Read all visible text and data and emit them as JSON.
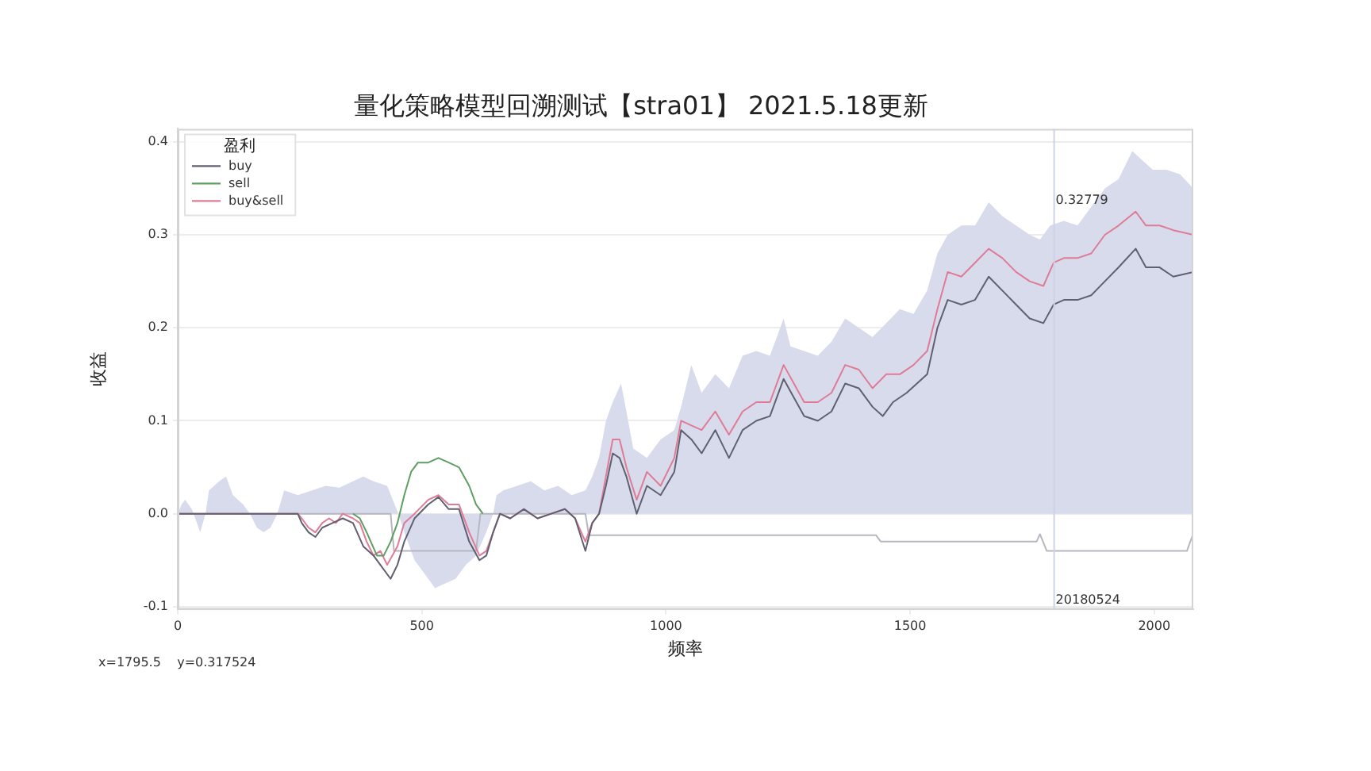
{
  "chart_data": {
    "type": "line",
    "title": "量化策略模型回溯测试【stra01】 2021.5.18更新",
    "xlabel": "频率",
    "ylabel": "收益",
    "legend_title": "盈利",
    "xlim": [
      0,
      2080
    ],
    "ylim": [
      -0.103,
      0.414
    ],
    "xticks": [
      0,
      500,
      1000,
      1500,
      2000
    ],
    "yticks": [
      -0.1,
      {
        "value": 0,
        "label": "0.0"
      },
      0.1,
      0.2,
      0.3,
      0.4
    ],
    "grid": "y",
    "legend": "top left",
    "series": [
      {
        "type": "area",
        "color": "#d8dbec",
        "x": [
          0,
          8,
          15,
          29,
          46,
          57,
          64,
          85,
          99,
          113,
          134,
          148,
          162,
          176,
          190,
          204,
          218,
          246,
          275,
          303,
          331,
          359,
          380,
          401,
          429,
          452,
          464,
          485,
          506,
          527,
          548,
          569,
          590,
          611,
          632,
          646,
          653,
          667,
          695,
          723,
          751,
          779,
          807,
          835,
          849,
          863,
          877,
          891,
          908,
          919,
          933,
          961,
          989,
          1017,
          1031,
          1052,
          1073,
          1101,
          1129,
          1157,
          1185,
          1213,
          1241,
          1255,
          1283,
          1311,
          1339,
          1367,
          1395,
          1423,
          1451,
          1479,
          1507,
          1535,
          1556,
          1577,
          1605,
          1633,
          1661,
          1689,
          1717,
          1745,
          1766,
          1787,
          1815,
          1843,
          1871,
          1899,
          1927,
          1955,
          1976,
          1997,
          2025,
          2053,
          2080
        ],
        "values": [
          0,
          0.01,
          0.015,
          0.005,
          -0.02,
          0,
          0.025,
          0.035,
          0.04,
          0.02,
          0.01,
          0,
          -0.015,
          -0.02,
          -0.015,
          0,
          0.025,
          0.02,
          0.025,
          0.03,
          0.028,
          0.035,
          0.04,
          0.035,
          0.03,
          0,
          -0.02,
          -0.05,
          -0.065,
          -0.08,
          -0.075,
          -0.07,
          -0.055,
          -0.045,
          -0.02,
          0,
          0.02,
          0.025,
          0.03,
          0.035,
          0.025,
          0.03,
          0.02,
          0.025,
          0.04,
          0.06,
          0.1,
          0.12,
          0.14,
          0.11,
          0.07,
          0.06,
          0.08,
          0.09,
          0.115,
          0.16,
          0.13,
          0.15,
          0.135,
          0.17,
          0.175,
          0.17,
          0.21,
          0.18,
          0.175,
          0.17,
          0.185,
          0.21,
          0.2,
          0.19,
          0.205,
          0.22,
          0.215,
          0.24,
          0.28,
          0.3,
          0.31,
          0.31,
          0.335,
          0.32,
          0.31,
          0.3,
          0.295,
          0.31,
          0.315,
          0.31,
          0.33,
          0.35,
          0.36,
          0.39,
          0.38,
          0.37,
          0.37,
          0.365,
          0.35
        ]
      },
      {
        "type": "line",
        "name": "buy",
        "color": "#5f6070",
        "x": [
          0,
          246,
          254,
          268,
          282,
          296,
          317,
          338,
          359,
          380,
          401,
          415,
          436,
          450,
          464,
          485,
          513,
          534,
          555,
          576,
          597,
          618,
          632,
          646,
          660,
          681,
          709,
          737,
          765,
          793,
          814,
          835,
          849,
          863,
          877,
          891,
          905,
          919,
          940,
          961,
          989,
          1017,
          1031,
          1052,
          1073,
          1101,
          1129,
          1157,
          1185,
          1213,
          1241,
          1262,
          1283,
          1311,
          1339,
          1367,
          1395,
          1423,
          1444,
          1465,
          1493,
          1535,
          1556,
          1577,
          1605,
          1633,
          1661,
          1689,
          1717,
          1745,
          1773,
          1794,
          1815,
          1843,
          1871,
          1899,
          1927,
          1962,
          1983,
          2011,
          2039,
          2080
        ],
        "values": [
          0,
          0,
          -0.01,
          -0.02,
          -0.025,
          -0.015,
          -0.01,
          -0.005,
          -0.01,
          -0.035,
          -0.045,
          -0.055,
          -0.07,
          -0.055,
          -0.03,
          -0.005,
          0.01,
          0.018,
          0.005,
          0.005,
          -0.03,
          -0.05,
          -0.045,
          -0.02,
          0,
          -0.005,
          0.005,
          -0.005,
          0,
          0.005,
          -0.005,
          -0.04,
          -0.01,
          0,
          0.03,
          0.065,
          0.06,
          0.04,
          0,
          0.03,
          0.02,
          0.045,
          0.09,
          0.08,
          0.065,
          0.09,
          0.06,
          0.09,
          0.1,
          0.105,
          0.145,
          0.125,
          0.105,
          0.1,
          0.11,
          0.14,
          0.135,
          0.115,
          0.105,
          0.12,
          0.13,
          0.15,
          0.2,
          0.23,
          0.225,
          0.23,
          0.255,
          0.24,
          0.225,
          0.21,
          0.205,
          0.225,
          0.23,
          0.23,
          0.235,
          0.25,
          0.265,
          0.285,
          0.265,
          0.265,
          0.255,
          0.26
        ]
      },
      {
        "type": "line",
        "name": "sell",
        "color": "#5e9e62",
        "x": [
          359,
          373,
          387,
          408,
          422,
          436,
          450,
          464,
          478,
          492,
          513,
          534,
          555,
          576,
          597,
          611,
          625
        ],
        "values": [
          0,
          -0.005,
          -0.02,
          -0.045,
          -0.045,
          -0.03,
          -0.01,
          0.02,
          0.045,
          0.055,
          0.055,
          0.06,
          0.055,
          0.05,
          0.03,
          0.01,
          0
        ]
      },
      {
        "type": "line",
        "name": "buy&sell",
        "color": "#e07b96",
        "x": [
          0,
          246,
          254,
          268,
          282,
          296,
          310,
          324,
          338,
          359,
          373,
          387,
          401,
          415,
          429,
          450,
          464,
          485,
          513,
          534,
          555,
          576,
          597,
          618,
          632,
          646,
          660,
          681,
          709,
          737,
          765,
          793,
          814,
          835,
          849,
          863,
          877,
          891,
          905,
          919,
          940,
          961,
          989,
          1017,
          1031,
          1052,
          1073,
          1101,
          1129,
          1157,
          1185,
          1213,
          1241,
          1262,
          1283,
          1311,
          1339,
          1367,
          1395,
          1423,
          1451,
          1479,
          1507,
          1535,
          1556,
          1577,
          1605,
          1633,
          1661,
          1689,
          1717,
          1745,
          1773,
          1794,
          1815,
          1843,
          1871,
          1899,
          1927,
          1962,
          1983,
          2011,
          2039,
          2080
        ],
        "values": [
          0,
          0,
          -0.005,
          -0.015,
          -0.02,
          -0.01,
          -0.005,
          -0.01,
          0,
          -0.005,
          -0.01,
          -0.03,
          -0.045,
          -0.04,
          -0.055,
          -0.035,
          -0.01,
          0,
          0.015,
          0.02,
          0.01,
          0.01,
          -0.02,
          -0.045,
          -0.04,
          -0.02,
          0,
          -0.005,
          0.005,
          -0.005,
          0,
          0.005,
          -0.005,
          -0.03,
          -0.01,
          0,
          0.04,
          0.08,
          0.08,
          0.05,
          0.015,
          0.045,
          0.03,
          0.06,
          0.1,
          0.095,
          0.09,
          0.11,
          0.085,
          0.11,
          0.12,
          0.12,
          0.16,
          0.14,
          0.12,
          0.12,
          0.13,
          0.16,
          0.155,
          0.135,
          0.15,
          0.15,
          0.16,
          0.175,
          0.22,
          0.26,
          0.255,
          0.27,
          0.285,
          0.275,
          0.26,
          0.25,
          0.245,
          0.27,
          0.275,
          0.275,
          0.28,
          0.3,
          0.31,
          0.325,
          0.31,
          0.31,
          0.305,
          0.3
        ]
      },
      {
        "type": "line",
        "color": "#b6b7c2",
        "x": [
          0,
          436,
          443,
          611,
          620,
          835,
          842,
          1430,
          1440,
          1759,
          1766,
          1780,
          2067,
          2080
        ],
        "values": [
          0,
          0,
          -0.04,
          -0.04,
          0,
          0,
          -0.023,
          -0.023,
          -0.03,
          -0.03,
          -0.022,
          -0.04,
          -0.04,
          -0.021
        ]
      }
    ],
    "ref_lines": [
      {
        "axis": "x",
        "value": 1795,
        "color": "#cfd2e6"
      }
    ],
    "annotations": [
      {
        "text": "0.32779",
        "x": 1795,
        "y": 0.33
      },
      {
        "text": "20180524",
        "x": 1795,
        "y": -0.1
      },
      "x=1795.5    y=0.317524"
    ]
  }
}
